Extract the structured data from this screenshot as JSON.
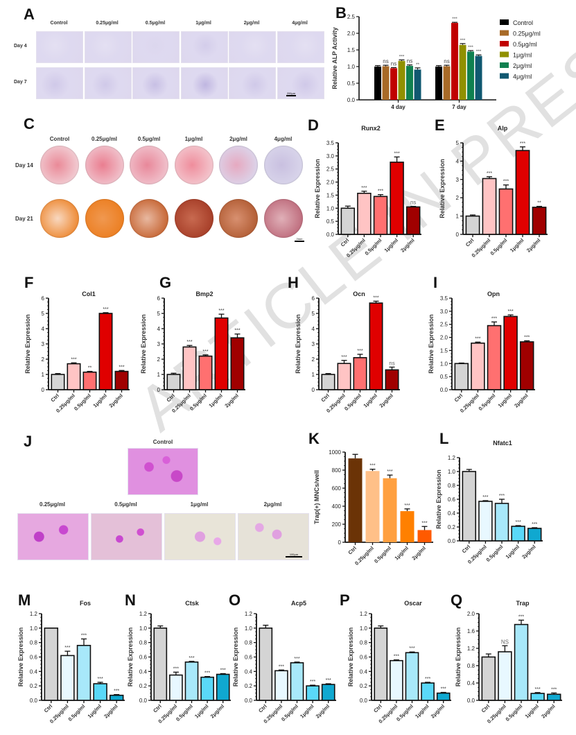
{
  "watermark": "ARTICLE IN PRESS",
  "panel_a": {
    "letter": "A",
    "columns": [
      "Control",
      "0.25μg/ml",
      "0.5μg/ml",
      "1μg/ml",
      "2μg/ml",
      "4μg/ml"
    ],
    "rows": [
      "Day 4",
      "Day 7"
    ],
    "scale_bar": "200μm"
  },
  "panel_c": {
    "letter": "C",
    "columns": [
      "Control",
      "0.25μg/ml",
      "0.5μg/ml",
      "1μg/ml",
      "2μg/ml",
      "4μg/ml"
    ],
    "rows": [
      "Day 14",
      "Day 21"
    ],
    "scale_bar": "2mm"
  },
  "panel_j": {
    "letter": "J",
    "control_label": "Control",
    "columns": [
      "0.25μg/ml",
      "0.5μg/ml",
      "1μg/ml",
      "2μg/ml"
    ],
    "scale_bar": "100μm"
  },
  "colors": {
    "red_series": [
      "#d4d4d4",
      "#ffc4c4",
      "#ff7070",
      "#e00000",
      "#a00000"
    ],
    "blue_series": [
      "#d4d4d4",
      "#e8f8ff",
      "#a8e8fa",
      "#5ad8f8",
      "#10a8d0"
    ],
    "orange_series": [
      "#6b3306",
      "#ffc088",
      "#ffa040",
      "#ff8000",
      "#ff5a00"
    ],
    "alp_series": [
      "#000000",
      "#a86a28",
      "#c00000",
      "#909000",
      "#108050",
      "#105870"
    ]
  },
  "chart_data": [
    {
      "id": "B",
      "type": "bar",
      "title": "",
      "ylabel": "Relative ALP Activity",
      "xlabel": "",
      "ylim": [
        0,
        2.5
      ],
      "yticks": [
        "0.0",
        "0.5",
        "1.0",
        "1.5",
        "2.0",
        "2.5"
      ],
      "categories": [
        "4 day",
        "7 day"
      ],
      "legend_position": "right",
      "series": [
        {
          "name": "Control",
          "values": [
            1.0,
            1.0
          ],
          "errors": [
            0.03,
            0.03
          ],
          "sig": [
            "",
            ""
          ]
        },
        {
          "name": "0.25μg/ml",
          "values": [
            1.01,
            1.01
          ],
          "errors": [
            0.03,
            0.03
          ],
          "sig": [
            "ns",
            "ns"
          ]
        },
        {
          "name": "0.5μg/ml",
          "values": [
            0.95,
            2.31
          ],
          "errors": [
            0.02,
            0.02
          ],
          "sig": [
            "ns",
            "***"
          ]
        },
        {
          "name": "1μg/ml",
          "values": [
            1.17,
            1.65
          ],
          "errors": [
            0.03,
            0.04
          ],
          "sig": [
            "***",
            "***"
          ]
        },
        {
          "name": "2μg/ml",
          "values": [
            1.02,
            1.45
          ],
          "errors": [
            0.03,
            0.03
          ],
          "sig": [
            "ns",
            "***"
          ]
        },
        {
          "name": "4μg/ml",
          "values": [
            0.91,
            1.32
          ],
          "errors": [
            0.05,
            0.03
          ],
          "sig": [
            "**",
            "***"
          ]
        }
      ]
    },
    {
      "id": "D",
      "type": "bar",
      "title": "Runx2",
      "ylabel": "Relative Expression",
      "ylim": [
        0,
        3.5
      ],
      "yticks": [
        "0.0",
        "0.5",
        "1.0",
        "1.5",
        "2.0",
        "2.5",
        "3.0",
        "3.5"
      ],
      "categories": [
        "Ctrl",
        "0.25μg/ml",
        "0.5μg/ml",
        "1μg/ml",
        "2μg/ml"
      ],
      "values": [
        1.0,
        1.57,
        1.45,
        2.76,
        1.05
      ],
      "errors": [
        0.08,
        0.08,
        0.07,
        0.2,
        0.02
      ],
      "sig": [
        "",
        "***",
        "***",
        "***",
        "ns"
      ],
      "palette": "red_series"
    },
    {
      "id": "E",
      "type": "bar",
      "title": "Alp",
      "ylabel": "Relative Expression",
      "ylim": [
        0,
        5
      ],
      "yticks": [
        "0",
        "1",
        "2",
        "3",
        "4",
        "5"
      ],
      "categories": [
        "Ctrl",
        "0.25μg/ml",
        "0.5μg/ml",
        "1μg/ml",
        "2μg/ml"
      ],
      "values": [
        1.0,
        3.05,
        2.48,
        4.58,
        1.48
      ],
      "errors": [
        0.06,
        0.1,
        0.22,
        0.2,
        0.05
      ],
      "sig": [
        "",
        "***",
        "***",
        "***",
        "**"
      ],
      "palette": "red_series"
    },
    {
      "id": "F",
      "type": "bar",
      "title": "Col1",
      "ylabel": "Relative Expression",
      "ylim": [
        0,
        6
      ],
      "yticks": [
        "0",
        "1",
        "2",
        "3",
        "4",
        "5",
        "6"
      ],
      "categories": [
        "Ctrl",
        "0.25μg/ml",
        "0.5μg/ml",
        "1μg/ml",
        "2μg/ml"
      ],
      "values": [
        1.0,
        1.7,
        1.15,
        5.0,
        1.2
      ],
      "errors": [
        0.06,
        0.06,
        0.05,
        0.05,
        0.06
      ],
      "sig": [
        "",
        "***",
        "**",
        "***",
        "***"
      ],
      "palette": "red_series"
    },
    {
      "id": "G",
      "type": "bar",
      "title": "Bmp2",
      "ylabel": "Relative Expression",
      "ylim": [
        0,
        6
      ],
      "yticks": [
        "0",
        "1",
        "2",
        "3",
        "4",
        "5",
        "6"
      ],
      "categories": [
        "Ctrl",
        "0.25μg/ml",
        "0.5μg/ml",
        "1μg/ml",
        "2μg/ml"
      ],
      "values": [
        1.0,
        2.8,
        2.2,
        4.7,
        3.4
      ],
      "errors": [
        0.08,
        0.1,
        0.08,
        0.25,
        0.25
      ],
      "sig": [
        "",
        "***",
        "***",
        "***",
        "***"
      ],
      "palette": "red_series"
    },
    {
      "id": "H",
      "type": "bar",
      "title": "Ocn",
      "ylabel": "Relative Expression",
      "ylim": [
        0,
        6
      ],
      "yticks": [
        "0",
        "1",
        "2",
        "3",
        "4",
        "5",
        "6"
      ],
      "categories": [
        "Ctrl",
        "0.25μg/ml",
        "0.5μg/ml",
        "1μg/ml",
        "2μg/ml"
      ],
      "values": [
        1.0,
        1.72,
        2.1,
        5.68,
        1.3
      ],
      "errors": [
        0.06,
        0.2,
        0.22,
        0.12,
        0.18
      ],
      "sig": [
        "",
        "***",
        "***",
        "***",
        "ns"
      ],
      "palette": "red_series"
    },
    {
      "id": "I",
      "type": "bar",
      "title": "Opn",
      "ylabel": "Relative Expression",
      "ylim": [
        0,
        3.5
      ],
      "yticks": [
        "0.0",
        "0.5",
        "1.0",
        "1.5",
        "2.0",
        "2.5",
        "3.0",
        "3.5"
      ],
      "categories": [
        "Ctrl",
        "0.25μg/ml",
        "0.5μg/ml",
        "1μg/ml",
        "2μg/ml"
      ],
      "values": [
        1.0,
        1.78,
        2.45,
        2.8,
        1.83
      ],
      "errors": [
        0.02,
        0.04,
        0.14,
        0.06,
        0.04
      ],
      "sig": [
        "",
        "***",
        "***",
        "***",
        "***"
      ],
      "palette": "red_series"
    },
    {
      "id": "K",
      "type": "bar",
      "title": "",
      "ylabel": "Trap(+) MNCs/well",
      "ylim": [
        0,
        1000
      ],
      "yticks": [
        "0",
        "200",
        "400",
        "600",
        "800",
        "1000"
      ],
      "categories": [
        "Ctrl",
        "0.25μg/ml",
        "0.5μg/ml",
        "1μg/ml",
        "2μg/ml"
      ],
      "values": [
        930,
        790,
        710,
        345,
        135
      ],
      "errors": [
        45,
        20,
        35,
        25,
        40
      ],
      "sig": [
        "",
        "***",
        "***",
        "***",
        "***"
      ],
      "palette": "orange_series",
      "outline": false
    },
    {
      "id": "L",
      "type": "bar",
      "title": "Nfatc1",
      "ylabel": "Relative Expression",
      "ylim": [
        0,
        1.2
      ],
      "yticks": [
        "0.0",
        "0.2",
        "0.4",
        "0.6",
        "0.8",
        "1.0",
        "1.2"
      ],
      "categories": [
        "Ctrl",
        "0.25μg/ml",
        "0.5μg/ml",
        "1μg/ml",
        "2μg/ml"
      ],
      "values": [
        1.0,
        0.57,
        0.54,
        0.21,
        0.18
      ],
      "errors": [
        0.03,
        0.01,
        0.06,
        0.01,
        0.01
      ],
      "sig": [
        "",
        "***",
        "***",
        "***",
        "***"
      ],
      "palette": "blue_series"
    },
    {
      "id": "M",
      "type": "bar",
      "title": "Fos",
      "ylabel": "Relative Expression",
      "ylim": [
        0,
        1.2
      ],
      "yticks": [
        "0.0",
        "0.2",
        "0.4",
        "0.6",
        "0.8",
        "1.0",
        "1.2"
      ],
      "categories": [
        "Ctrl",
        "0.25μg/ml",
        "0.5μg/ml",
        "1μg/ml",
        "2μg/ml"
      ],
      "values": [
        1.0,
        0.62,
        0.76,
        0.23,
        0.07
      ],
      "errors": [
        0.0,
        0.06,
        0.09,
        0.02,
        0.01
      ],
      "sig": [
        "",
        "***",
        "***",
        "***",
        "***"
      ],
      "palette": "blue_series"
    },
    {
      "id": "N",
      "type": "bar",
      "title": "Ctsk",
      "ylabel": "Relative Expression",
      "ylim": [
        0,
        1.2
      ],
      "yticks": [
        "0.0",
        "0.2",
        "0.4",
        "0.6",
        "0.8",
        "1.0",
        "1.2"
      ],
      "categories": [
        "Ctrl",
        "0.25μg/ml",
        "0.5μg/ml",
        "1μg/ml",
        "2μg/ml"
      ],
      "values": [
        1.0,
        0.35,
        0.53,
        0.32,
        0.36
      ],
      "errors": [
        0.03,
        0.04,
        0.01,
        0.01,
        0.01
      ],
      "sig": [
        "",
        "***",
        "***",
        "***",
        "***"
      ],
      "palette": "blue_series"
    },
    {
      "id": "O",
      "type": "bar",
      "title": "Acp5",
      "ylabel": "Relative Expression",
      "ylim": [
        0,
        1.2
      ],
      "yticks": [
        "0.0",
        "0.2",
        "0.4",
        "0.6",
        "0.8",
        "1.0",
        "1.2"
      ],
      "categories": [
        "Ctrl",
        "0.25μg/ml",
        "0.5μg/ml",
        "1μg/ml",
        "2μg/ml"
      ],
      "values": [
        1.0,
        0.41,
        0.52,
        0.2,
        0.22
      ],
      "errors": [
        0.04,
        0.01,
        0.01,
        0.01,
        0.01
      ],
      "sig": [
        "",
        "***",
        "***",
        "***",
        "***"
      ],
      "palette": "blue_series"
    },
    {
      "id": "P",
      "type": "bar",
      "title": "Oscar",
      "ylabel": "Relative Expression",
      "ylim": [
        0,
        1.2
      ],
      "yticks": [
        "0.0",
        "0.2",
        "0.4",
        "0.6",
        "0.8",
        "1.0",
        "1.2"
      ],
      "categories": [
        "Ctrl",
        "0.25μg/ml",
        "0.5μg/ml",
        "1μg/ml",
        "2μg/ml"
      ],
      "values": [
        1.0,
        0.55,
        0.66,
        0.24,
        0.1
      ],
      "errors": [
        0.03,
        0.01,
        0.01,
        0.01,
        0.01
      ],
      "sig": [
        "",
        "***",
        "***",
        "***",
        "***"
      ],
      "palette": "blue_series"
    },
    {
      "id": "Q",
      "type": "bar",
      "title": "Trap",
      "ylabel": "Relative Expression",
      "ylim": [
        0,
        2.0
      ],
      "yticks": [
        "0.0",
        "0.4",
        "0.8",
        "1.2",
        "1.6",
        "2.0"
      ],
      "categories": [
        "Ctrl",
        "0.25μg/ml",
        "0.5μg/ml",
        "1μg/ml",
        "2μg/ml"
      ],
      "values": [
        1.0,
        1.12,
        1.75,
        0.16,
        0.14
      ],
      "errors": [
        0.07,
        0.14,
        0.1,
        0.02,
        0.03
      ],
      "sig": [
        "",
        "NS",
        "***",
        "***",
        "***"
      ],
      "palette": "blue_series"
    }
  ]
}
